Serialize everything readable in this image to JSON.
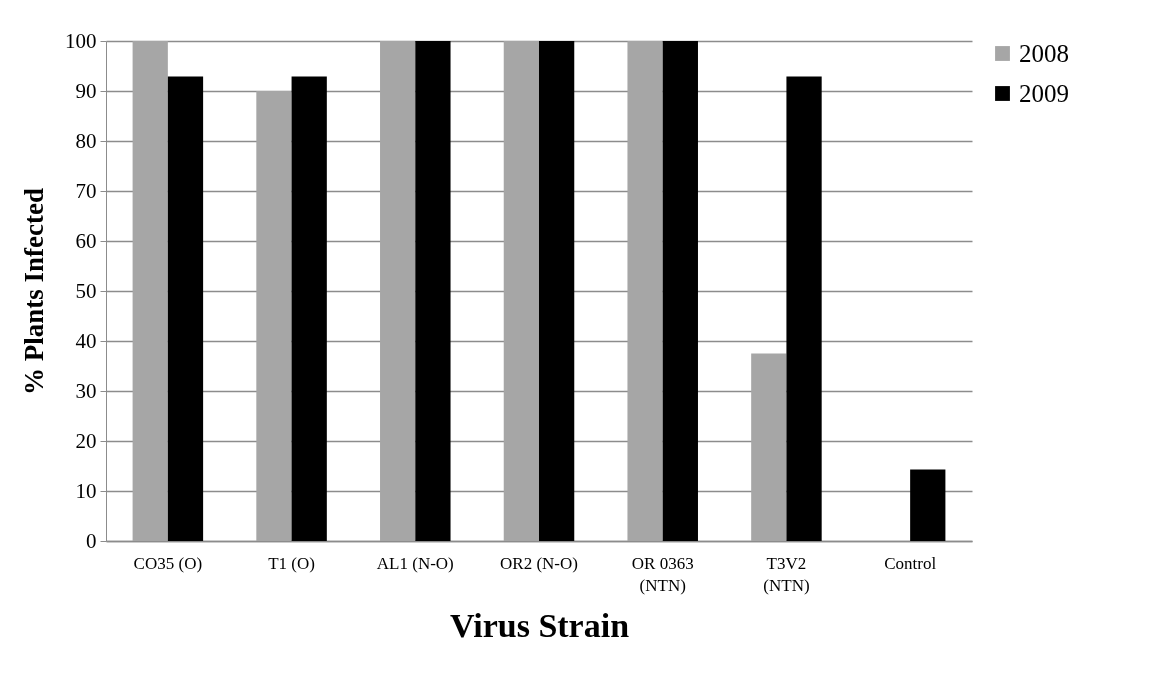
{
  "chart_data": {
    "type": "bar",
    "xlabel": "Virus Strain",
    "ylabel": "% Plants Infected",
    "categories": [
      "CO35 (O)",
      "T1 (O)",
      "AL1 (N-O)",
      "OR2 (N-O)",
      "OR 0363 (NTN)",
      "T3V2 (NTN)",
      "Control"
    ],
    "series": [
      {
        "name": "2008",
        "color": "#a6a6a6",
        "values": [
          100,
          90,
          100,
          100,
          100,
          37.5,
          0
        ]
      },
      {
        "name": "2009",
        "color": "#000000",
        "values": [
          92.9,
          92.9,
          100,
          100,
          100,
          92.9,
          14.3
        ]
      }
    ],
    "ylim": [
      0,
      100
    ],
    "yticks": [
      0,
      10,
      20,
      30,
      40,
      50,
      60,
      70,
      80,
      90,
      100
    ],
    "grid": "y",
    "legend": "right"
  }
}
